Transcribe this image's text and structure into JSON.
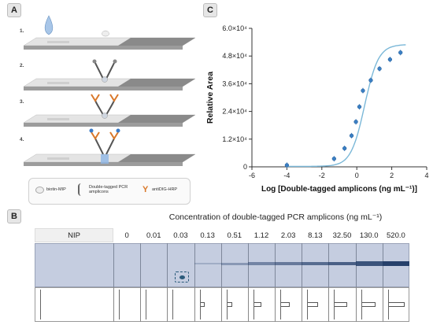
{
  "panels": {
    "a": "A",
    "b": "B",
    "c": "C"
  },
  "panel_a": {
    "steps": [
      "1.",
      "2.",
      "3.",
      "4."
    ],
    "legend": {
      "biotin_mip": "biotin-MIP",
      "double_tagged": "Double-tagged PCR amplicons",
      "antidig": "antiDIG-HRP"
    }
  },
  "panel_b": {
    "title": "Concentration of double-tagged PCR amplicons (ng mL⁻¹)",
    "lanes": [
      "NIP",
      "0",
      "0.01",
      "0.03",
      "0.13",
      "0.51",
      "1.12",
      "2.03",
      "8.13",
      "32.50",
      "130.0",
      "520.0"
    ],
    "band_intensity": [
      0,
      0,
      0,
      0,
      0.08,
      0.25,
      0.4,
      0.5,
      0.6,
      0.7,
      0.8,
      0.95
    ],
    "colors": {
      "strip": "#c5cde0",
      "band": "#1f3a66"
    }
  },
  "chart_data": {
    "type": "scatter",
    "xlabel": "Log [Double-tagged amplicons (ng mL⁻¹)]",
    "ylabel": "Relative Area",
    "xlim": [
      -6,
      4
    ],
    "ylim": [
      0,
      60000
    ],
    "xticks": [
      "-6",
      "-4",
      "-2",
      "0",
      "2",
      "4"
    ],
    "yticks": [
      "0",
      "1.2×10⁴",
      "2.4×10⁴",
      "3.6×10⁴",
      "4.8×10⁴",
      "6.0×10⁴"
    ],
    "x": [
      -4.0,
      -1.3,
      -0.7,
      -0.3,
      -0.05,
      0.15,
      0.35,
      0.8,
      1.3,
      1.9,
      2.5
    ],
    "y": [
      700,
      3500,
      8000,
      13500,
      19500,
      26000,
      33000,
      37500,
      42500,
      46500,
      49500
    ],
    "fit_curve": true,
    "colors": {
      "points": "#3b7fc4",
      "curve": "#7bb8d8"
    }
  }
}
